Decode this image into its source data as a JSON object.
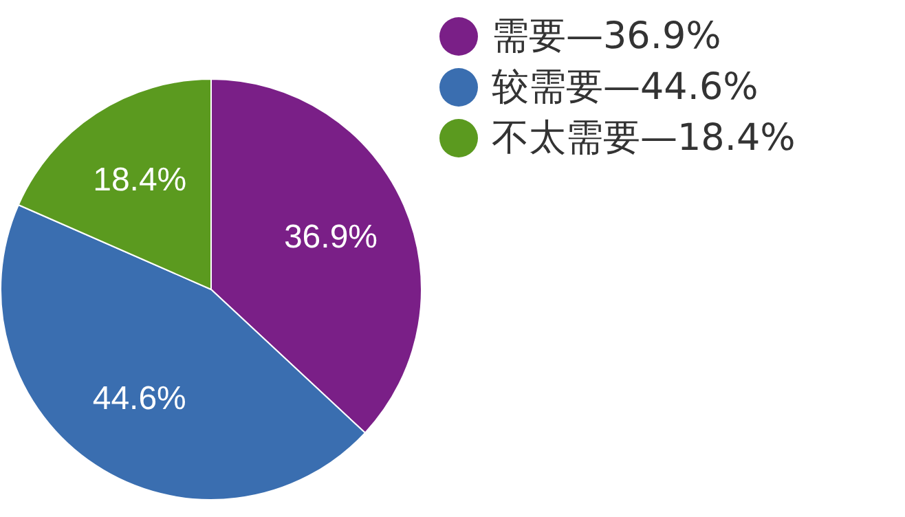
{
  "chart_data": {
    "type": "pie",
    "categories": [
      "需要—36.9%",
      "较需要—44.6%",
      "不太需要—18.4%"
    ],
    "values": [
      36.9,
      44.6,
      18.4
    ],
    "colors": [
      "#7a1f87",
      "#3a6eb0",
      "#5b9a1f"
    ],
    "value_labels": [
      "36.9%",
      "44.6%",
      "18.4%"
    ],
    "legend": "top right"
  }
}
